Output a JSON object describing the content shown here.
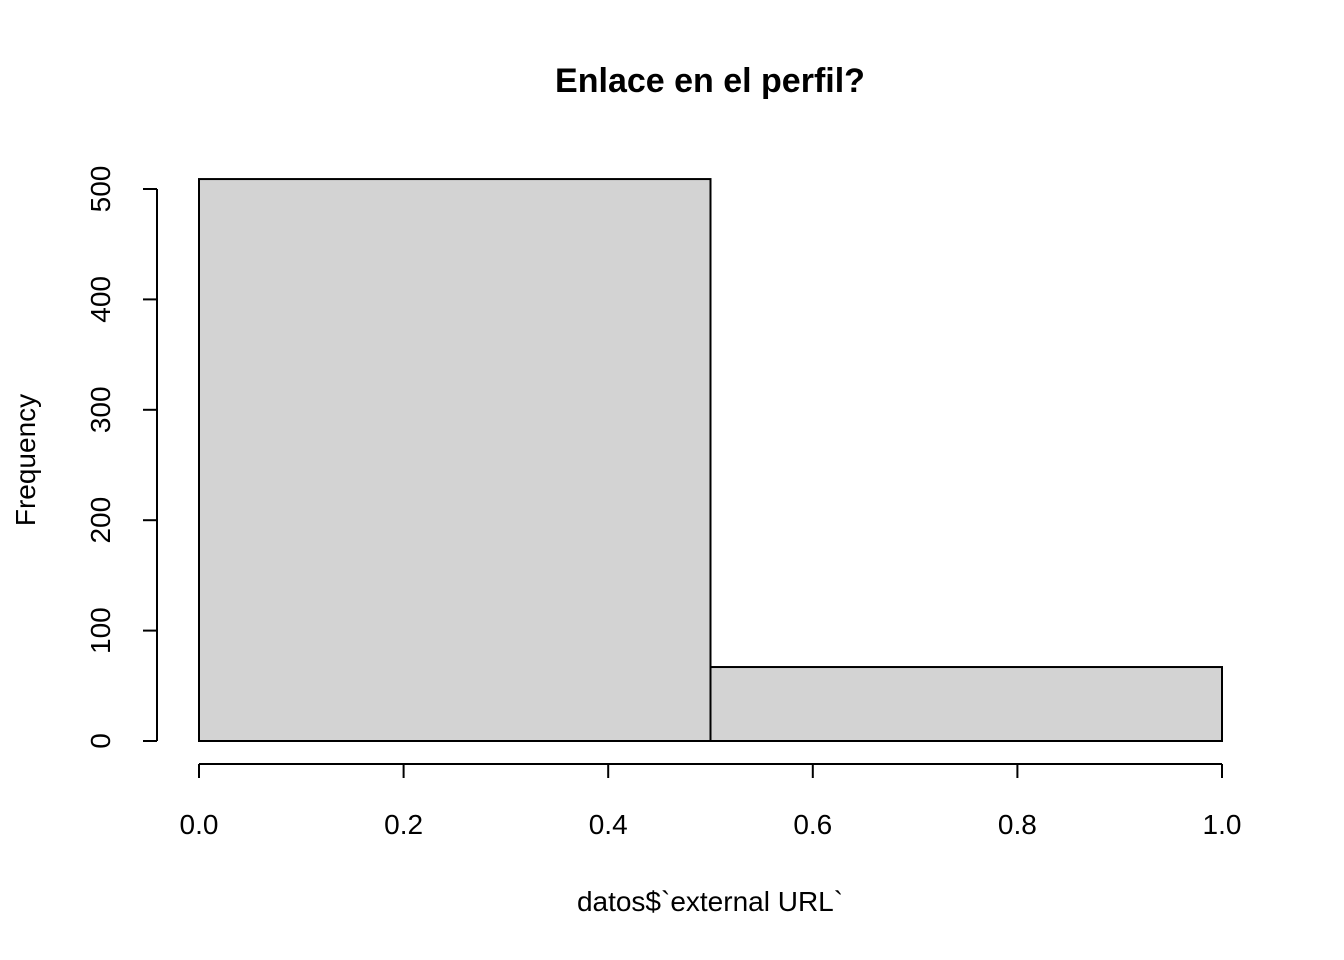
{
  "chart_data": {
    "type": "bar",
    "title": "Enlace en el perfil?",
    "xlabel": "datos$`external URL`",
    "ylabel": "Frequency",
    "bins": [
      {
        "x0": 0.0,
        "x1": 0.5,
        "value": 509
      },
      {
        "x0": 0.5,
        "x1": 1.0,
        "value": 67
      }
    ],
    "xlim": [
      0.0,
      1.0
    ],
    "ylim": [
      0,
      509
    ],
    "x_ticks": [
      {
        "value": 0.0,
        "label": "0.0"
      },
      {
        "value": 0.2,
        "label": "0.2"
      },
      {
        "value": 0.4,
        "label": "0.4"
      },
      {
        "value": 0.6,
        "label": "0.6"
      },
      {
        "value": 0.8,
        "label": "0.8"
      },
      {
        "value": 1.0,
        "label": "1.0"
      }
    ],
    "y_ticks": [
      {
        "value": 0,
        "label": "0"
      },
      {
        "value": 100,
        "label": "100"
      },
      {
        "value": 200,
        "label": "200"
      },
      {
        "value": 300,
        "label": "300"
      },
      {
        "value": 400,
        "label": "400"
      },
      {
        "value": 500,
        "label": "500"
      }
    ],
    "bar_color": "#d3d3d3",
    "grid": false,
    "legend": "none"
  }
}
